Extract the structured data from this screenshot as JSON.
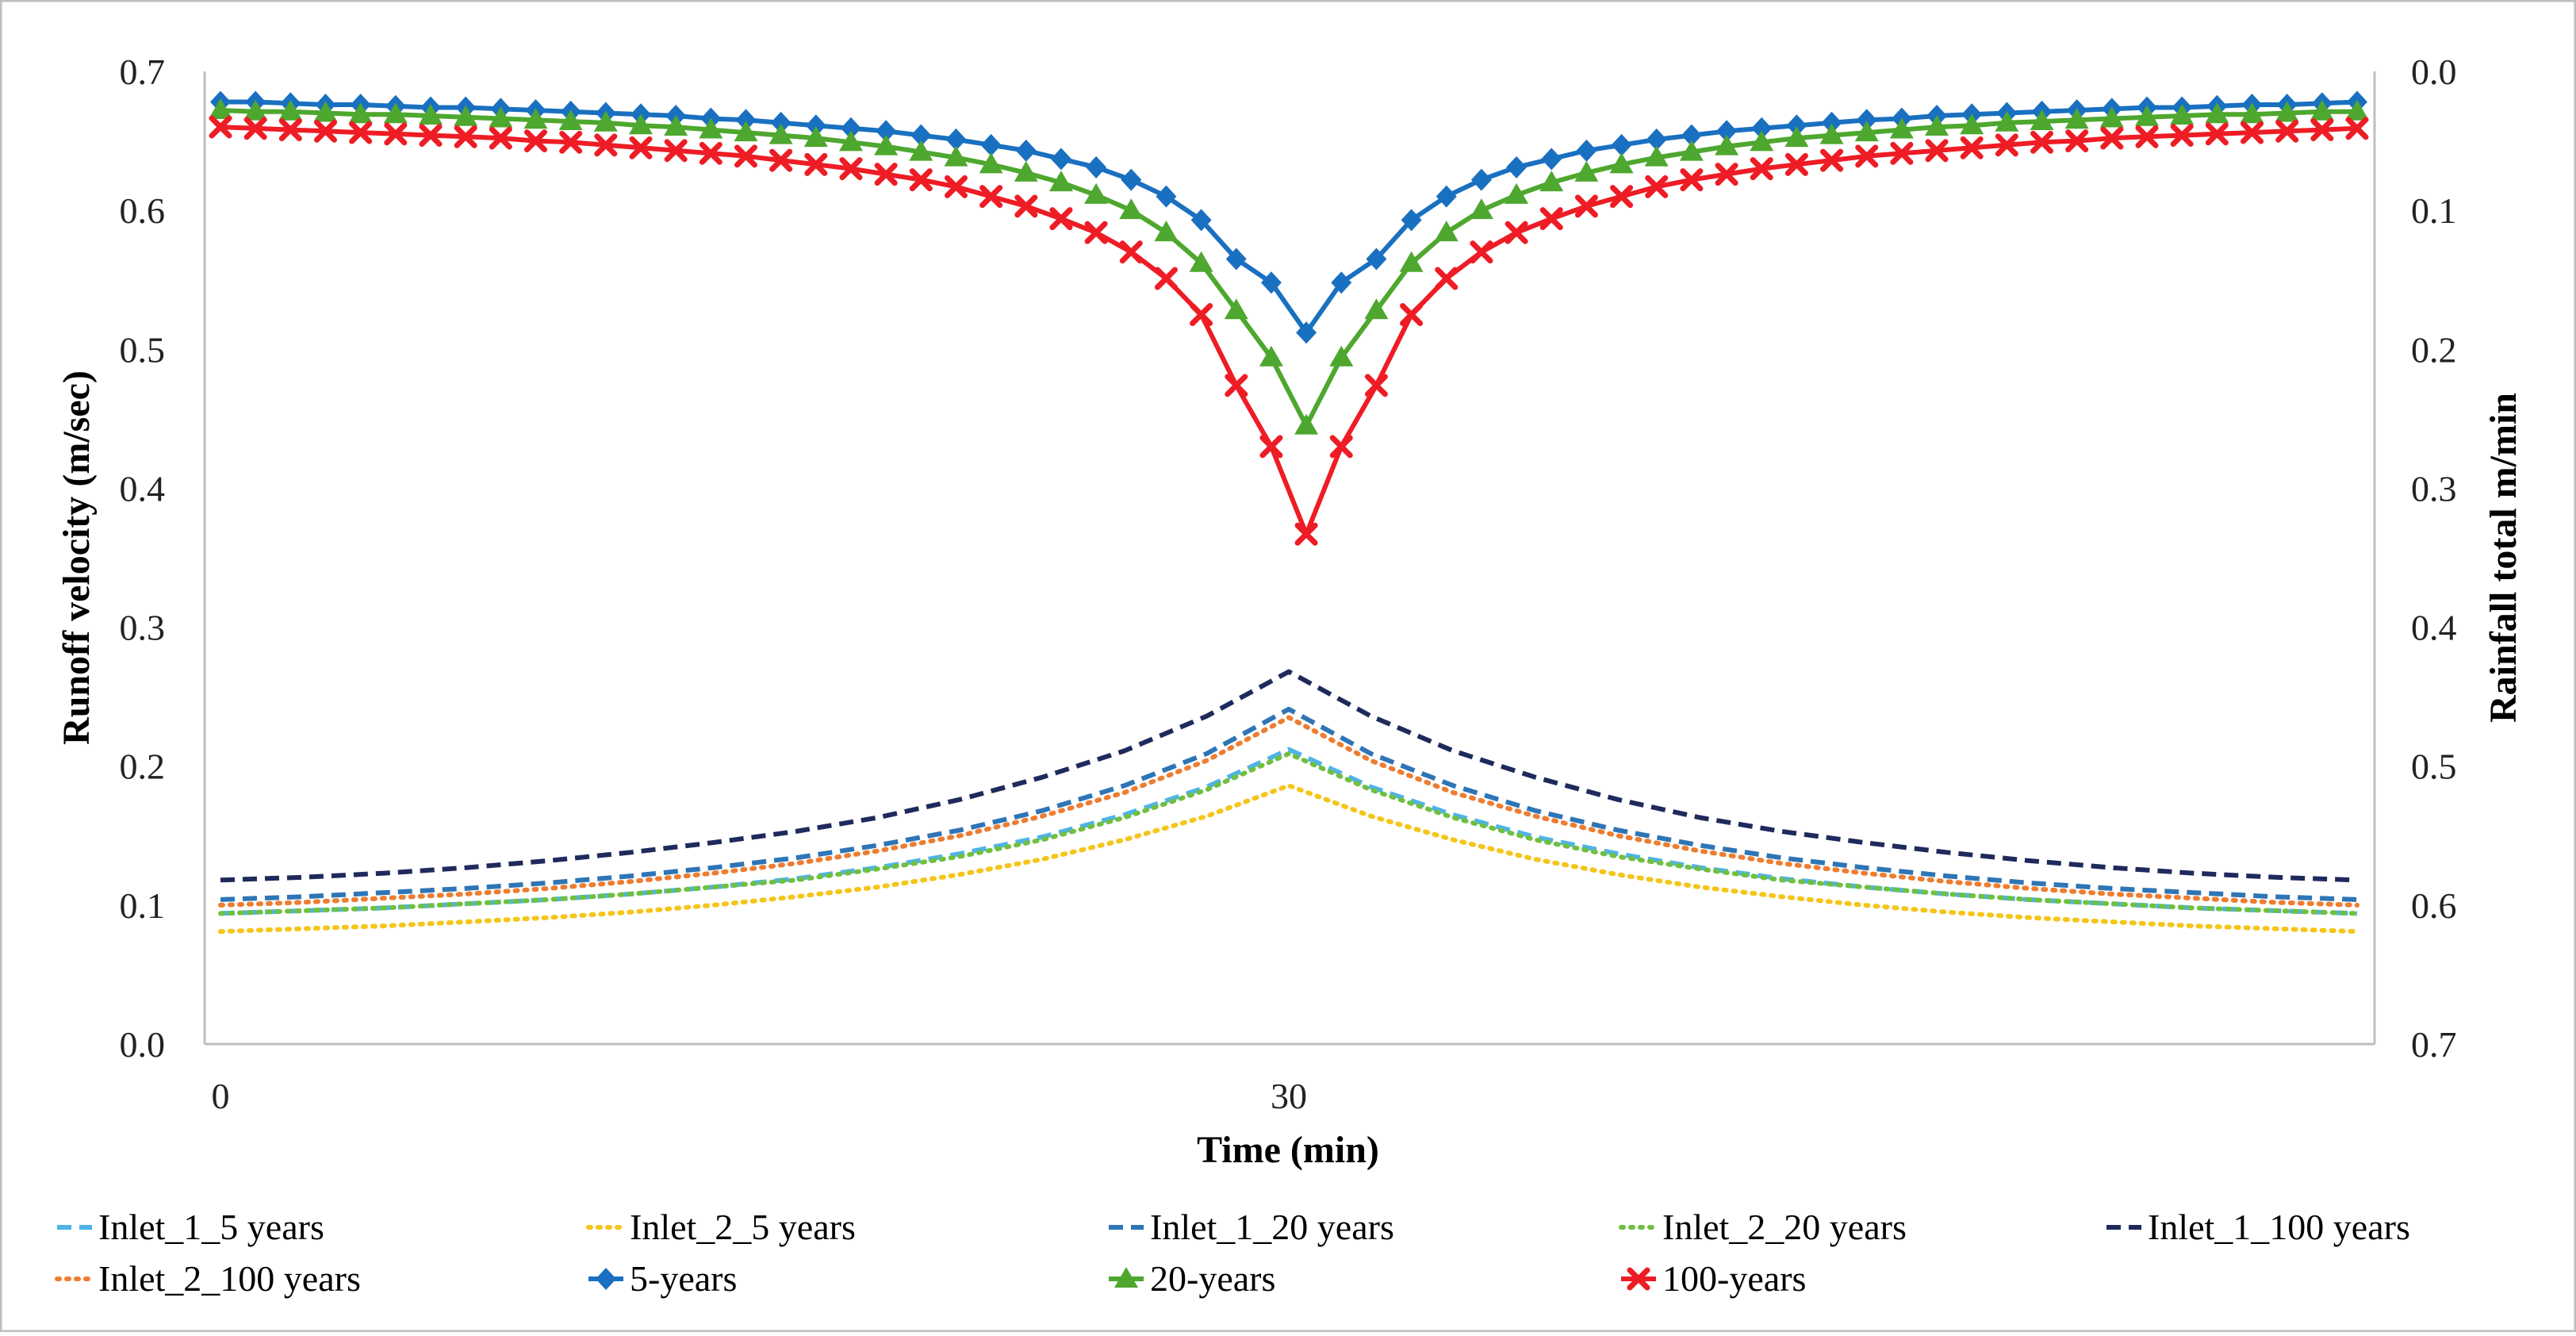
{
  "chart_data": {
    "type": "line",
    "title": "",
    "xlabel": "Time (min)",
    "ylabel": "Runoff velocity (m/sec)",
    "y2label": "Rainfall total m/min",
    "xlim": [
      0,
      60
    ],
    "ylim": [
      0,
      0.7
    ],
    "y2lim": [
      0,
      0.7
    ],
    "y2_inverted": true,
    "x_ticks": [
      0,
      30
    ],
    "y_ticks": [
      "0.0",
      "0.1",
      "0.2",
      "0.3",
      "0.4",
      "0.5",
      "0.6",
      "0.7"
    ],
    "y2_ticks": [
      "0.0",
      "0.1",
      "0.2",
      "0.3",
      "0.4",
      "0.5",
      "0.6",
      "0.7"
    ],
    "legend_position": "bottom",
    "series": [
      {
        "name": "Inlet_1_5 years",
        "axis": "left",
        "style": "dash",
        "color": "#4fb3e8",
        "values": [
          0.094,
          0.096,
          0.098,
          0.101,
          0.104,
          0.108,
          0.113,
          0.119,
          0.127,
          0.137,
          0.149,
          0.165,
          0.185,
          0.212,
          0.185,
          0.165,
          0.149,
          0.137,
          0.127,
          0.119,
          0.113,
          0.108,
          0.104,
          0.101,
          0.098,
          0.096,
          0.094
        ]
      },
      {
        "name": "Inlet_2_5 years",
        "axis": "left",
        "style": "dot",
        "color": "#f5c518",
        "values": [
          0.081,
          0.083,
          0.085,
          0.088,
          0.091,
          0.095,
          0.1,
          0.106,
          0.113,
          0.122,
          0.133,
          0.147,
          0.164,
          0.186,
          0.164,
          0.147,
          0.133,
          0.122,
          0.113,
          0.106,
          0.1,
          0.095,
          0.091,
          0.088,
          0.085,
          0.083,
          0.081
        ]
      },
      {
        "name": "Inlet_1_20 years",
        "axis": "left",
        "style": "dash",
        "color": "#2e75b6",
        "values": [
          0.104,
          0.106,
          0.109,
          0.112,
          0.116,
          0.121,
          0.127,
          0.134,
          0.143,
          0.154,
          0.168,
          0.186,
          0.209,
          0.241,
          0.209,
          0.186,
          0.168,
          0.154,
          0.143,
          0.134,
          0.127,
          0.121,
          0.116,
          0.112,
          0.109,
          0.106,
          0.104
        ]
      },
      {
        "name": "Inlet_2_20 years",
        "axis": "left",
        "style": "dot",
        "color": "#70c040",
        "values": [
          0.094,
          0.096,
          0.098,
          0.101,
          0.104,
          0.108,
          0.113,
          0.118,
          0.126,
          0.135,
          0.147,
          0.163,
          0.183,
          0.209,
          0.183,
          0.163,
          0.147,
          0.135,
          0.126,
          0.118,
          0.113,
          0.108,
          0.104,
          0.101,
          0.098,
          0.096,
          0.094
        ]
      },
      {
        "name": "Inlet_1_100 years",
        "axis": "left",
        "style": "dash",
        "color": "#1f2a5c",
        "values": [
          0.118,
          0.12,
          0.123,
          0.127,
          0.132,
          0.138,
          0.145,
          0.153,
          0.163,
          0.176,
          0.192,
          0.211,
          0.236,
          0.268,
          0.236,
          0.211,
          0.192,
          0.176,
          0.163,
          0.153,
          0.145,
          0.138,
          0.132,
          0.127,
          0.123,
          0.12,
          0.118
        ]
      },
      {
        "name": "Inlet_2_100 years",
        "axis": "left",
        "style": "dot",
        "color": "#ed7d31",
        "values": [
          0.1,
          0.102,
          0.105,
          0.108,
          0.112,
          0.117,
          0.123,
          0.13,
          0.139,
          0.15,
          0.164,
          0.181,
          0.204,
          0.235,
          0.204,
          0.181,
          0.164,
          0.15,
          0.139,
          0.13,
          0.123,
          0.117,
          0.112,
          0.108,
          0.105,
          0.102,
          0.1
        ]
      },
      {
        "name": "5-years",
        "axis": "right",
        "style": "solid",
        "marker": "diamond",
        "color": "#1a70c0",
        "values": [
          0.022,
          0.022,
          0.023,
          0.024,
          0.024,
          0.025,
          0.026,
          0.026,
          0.027,
          0.028,
          0.029,
          0.03,
          0.031,
          0.032,
          0.034,
          0.035,
          0.037,
          0.039,
          0.041,
          0.043,
          0.046,
          0.049,
          0.053,
          0.057,
          0.063,
          0.069,
          0.078,
          0.09,
          0.107,
          0.135,
          0.152,
          0.188,
          0.152,
          0.135,
          0.107,
          0.09,
          0.078,
          0.069,
          0.063,
          0.057,
          0.053,
          0.049,
          0.046,
          0.043,
          0.041,
          0.039,
          0.037,
          0.035,
          0.034,
          0.032,
          0.031,
          0.03,
          0.029,
          0.028,
          0.027,
          0.026,
          0.026,
          0.025,
          0.024,
          0.024,
          0.023,
          0.022
        ]
      },
      {
        "name": "20-years",
        "axis": "right",
        "style": "solid",
        "marker": "triangle",
        "color": "#4ea72e",
        "values": [
          0.028,
          0.029,
          0.029,
          0.03,
          0.031,
          0.031,
          0.032,
          0.033,
          0.034,
          0.035,
          0.036,
          0.037,
          0.039,
          0.04,
          0.042,
          0.044,
          0.046,
          0.048,
          0.051,
          0.054,
          0.058,
          0.062,
          0.067,
          0.073,
          0.08,
          0.089,
          0.1,
          0.116,
          0.138,
          0.172,
          0.206,
          0.255,
          0.206,
          0.172,
          0.138,
          0.116,
          0.1,
          0.089,
          0.08,
          0.073,
          0.067,
          0.062,
          0.058,
          0.054,
          0.051,
          0.048,
          0.046,
          0.044,
          0.042,
          0.04,
          0.039,
          0.037,
          0.036,
          0.035,
          0.034,
          0.033,
          0.032,
          0.031,
          0.031,
          0.03,
          0.029,
          0.029
        ]
      },
      {
        "name": "100-years",
        "axis": "right",
        "style": "solid",
        "marker": "x",
        "color": "#ee1c25",
        "values": [
          0.04,
          0.041,
          0.042,
          0.043,
          0.044,
          0.045,
          0.046,
          0.047,
          0.048,
          0.05,
          0.051,
          0.053,
          0.055,
          0.057,
          0.059,
          0.061,
          0.064,
          0.067,
          0.07,
          0.074,
          0.078,
          0.083,
          0.09,
          0.097,
          0.106,
          0.116,
          0.13,
          0.149,
          0.175,
          0.226,
          0.27,
          0.333,
          0.27,
          0.226,
          0.175,
          0.149,
          0.13,
          0.116,
          0.106,
          0.097,
          0.09,
          0.083,
          0.078,
          0.074,
          0.07,
          0.067,
          0.064,
          0.061,
          0.059,
          0.057,
          0.055,
          0.053,
          0.051,
          0.05,
          0.048,
          0.047,
          0.046,
          0.045,
          0.044,
          0.043,
          0.042,
          0.041
        ]
      }
    ]
  }
}
